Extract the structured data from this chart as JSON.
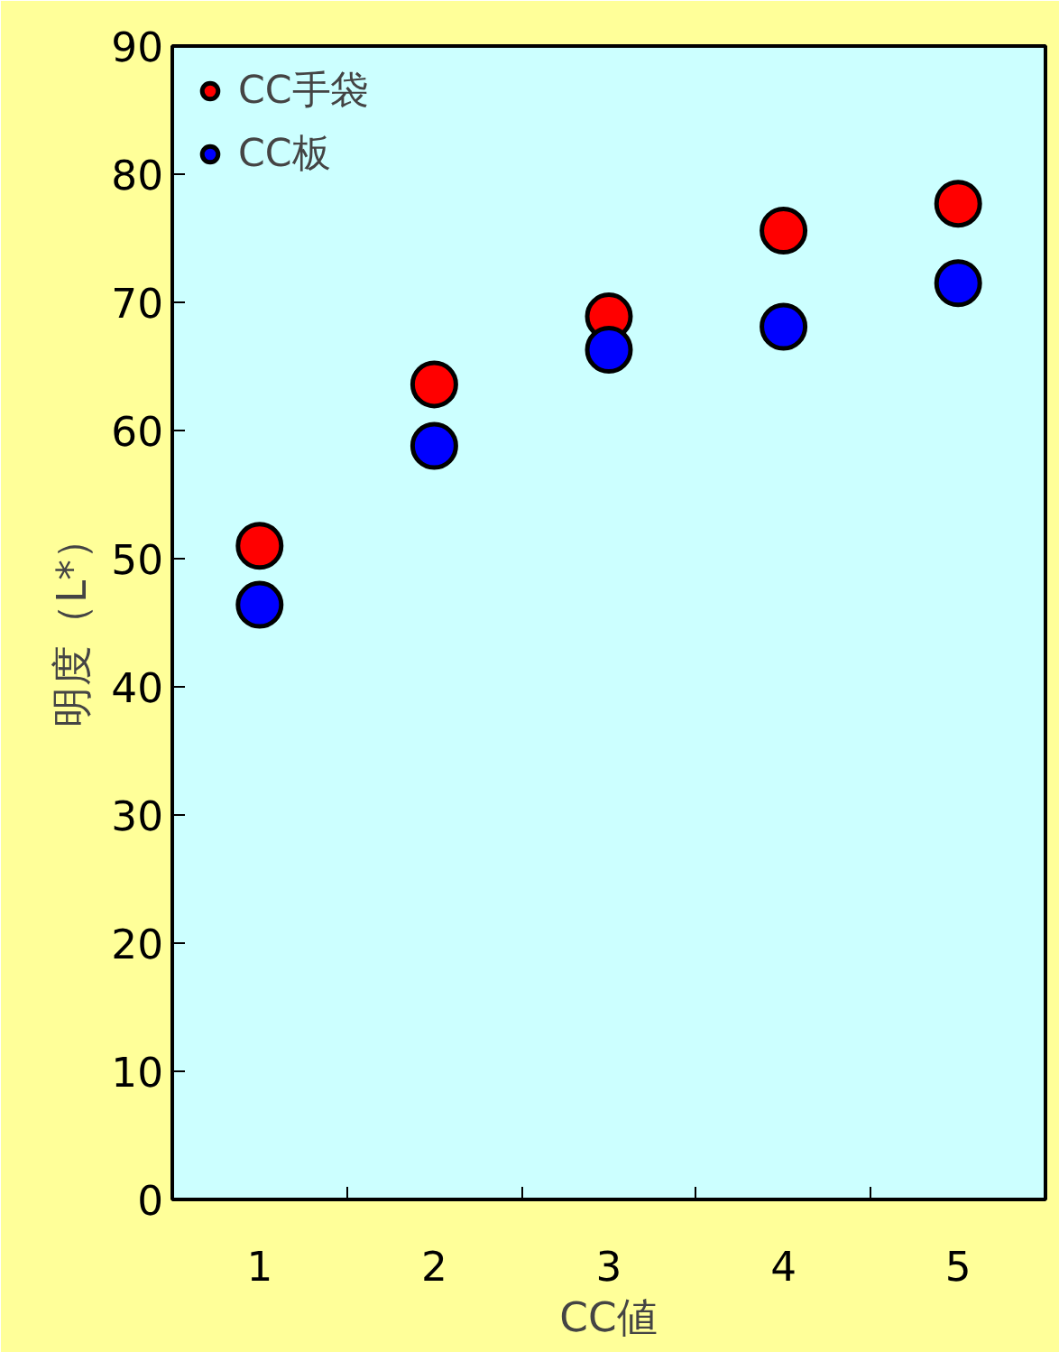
{
  "chart_data": {
    "type": "scatter",
    "categories": [
      "1",
      "2",
      "3",
      "4",
      "5"
    ],
    "xlabel": "CC値",
    "ylabel": "明度（L*）",
    "ylim": [
      0,
      90
    ],
    "yticks": [
      0,
      10,
      20,
      30,
      40,
      50,
      60,
      70,
      80,
      90
    ],
    "marker": "circle",
    "legend": "top left",
    "grid": false,
    "series": [
      {
        "name": "CC手袋",
        "color": "#ff0000",
        "values": [
          51.0,
          63.6,
          68.9,
          75.6,
          77.7
        ]
      },
      {
        "name": "CC板",
        "color": "#0000ff",
        "values": [
          46.4,
          58.8,
          66.3,
          68.1,
          71.5
        ]
      }
    ]
  }
}
